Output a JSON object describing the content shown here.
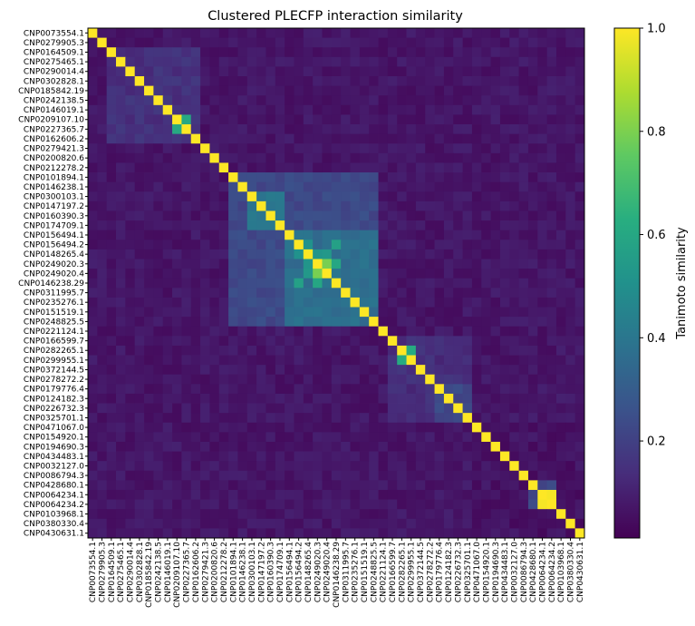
{
  "chart_data": {
    "type": "heatmap",
    "title": "Clustered PLECFP interaction similarity",
    "labels": [
      "CNP0073554.1",
      "CNP0279905.3",
      "CNP0164509.1",
      "CNP0275465.1",
      "CNP0290014.4",
      "CNP0302828.1",
      "CNP0185842.19",
      "CNP0242138.5",
      "CNP0146019.1",
      "CNP0209107.10",
      "CNP0227365.7",
      "CNP0162606.2",
      "CNP0279421.3",
      "CNP0200820.6",
      "CNP0212278.2",
      "CNP0101894.1",
      "CNP0146238.1",
      "CNP0300103.1",
      "CNP0147197.2",
      "CNP0160390.3",
      "CNP0174709.1",
      "CNP0156494.1",
      "CNP0156494.2",
      "CNP0148265.4",
      "CNP0249020.3",
      "CNP0249020.4",
      "CNP0146238.29",
      "CNP0311995.7",
      "CNP0235276.1",
      "CNP0151519.1",
      "CNP0248825.5",
      "CNP0221124.1",
      "CNP0166599.7",
      "CNP0282265.1",
      "CNP0299955.1",
      "CNP0372144.5",
      "CNP0278272.2",
      "CNP0179776.4",
      "CNP0124182.3",
      "CNP0226732.3",
      "CNP0325701.1",
      "CNP0471067.0",
      "CNP0154920.1",
      "CNP0194690.3",
      "CNP0434483.1",
      "CNP0032127.0",
      "CNP0086794.3",
      "CNP0428680.1",
      "CNP0064234.1",
      "CNP0064234.2",
      "CNP0103968.1",
      "CNP0380330.4",
      "CNP0430631.1"
    ],
    "diagonal_value": 1.0,
    "base_value": 0.06,
    "blocks": [
      {
        "from": 2,
        "to": 11,
        "value": 0.14
      },
      {
        "from": 15,
        "to": 30,
        "value": 0.22
      },
      {
        "from": 17,
        "to": 20,
        "value": 0.38
      },
      {
        "from": 21,
        "to": 30,
        "value": 0.36
      },
      {
        "from": 32,
        "to": 40,
        "value": 0.13
      },
      {
        "from": 37,
        "to": 40,
        "value": 0.22
      },
      {
        "from": 41,
        "to": 52,
        "value": 0.05
      }
    ],
    "pairs": [
      {
        "i": 9,
        "j": 10,
        "value": 0.62
      },
      {
        "i": 22,
        "j": 23,
        "value": 0.52
      },
      {
        "i": 23,
        "j": 24,
        "value": 0.5
      },
      {
        "i": 24,
        "j": 25,
        "value": 0.82
      },
      {
        "i": 23,
        "j": 25,
        "value": 0.55
      },
      {
        "i": 22,
        "j": 26,
        "value": 0.58
      },
      {
        "i": 24,
        "j": 26,
        "value": 0.6
      },
      {
        "i": 33,
        "j": 34,
        "value": 0.62
      },
      {
        "i": 48,
        "j": 49,
        "value": 1.0
      },
      {
        "i": 47,
        "j": 48,
        "value": 0.22
      },
      {
        "i": 47,
        "j": 49,
        "value": 0.22
      }
    ],
    "colorbar": {
      "label": "Tanimoto similarity",
      "range": [
        0.0,
        1.0
      ],
      "ticks": [
        "0.2",
        "0.4",
        "0.6",
        "0.8",
        "1.0"
      ],
      "tick_values": [
        0.2,
        0.4,
        0.6,
        0.8,
        1.0
      ],
      "colormap": "viridis"
    }
  }
}
